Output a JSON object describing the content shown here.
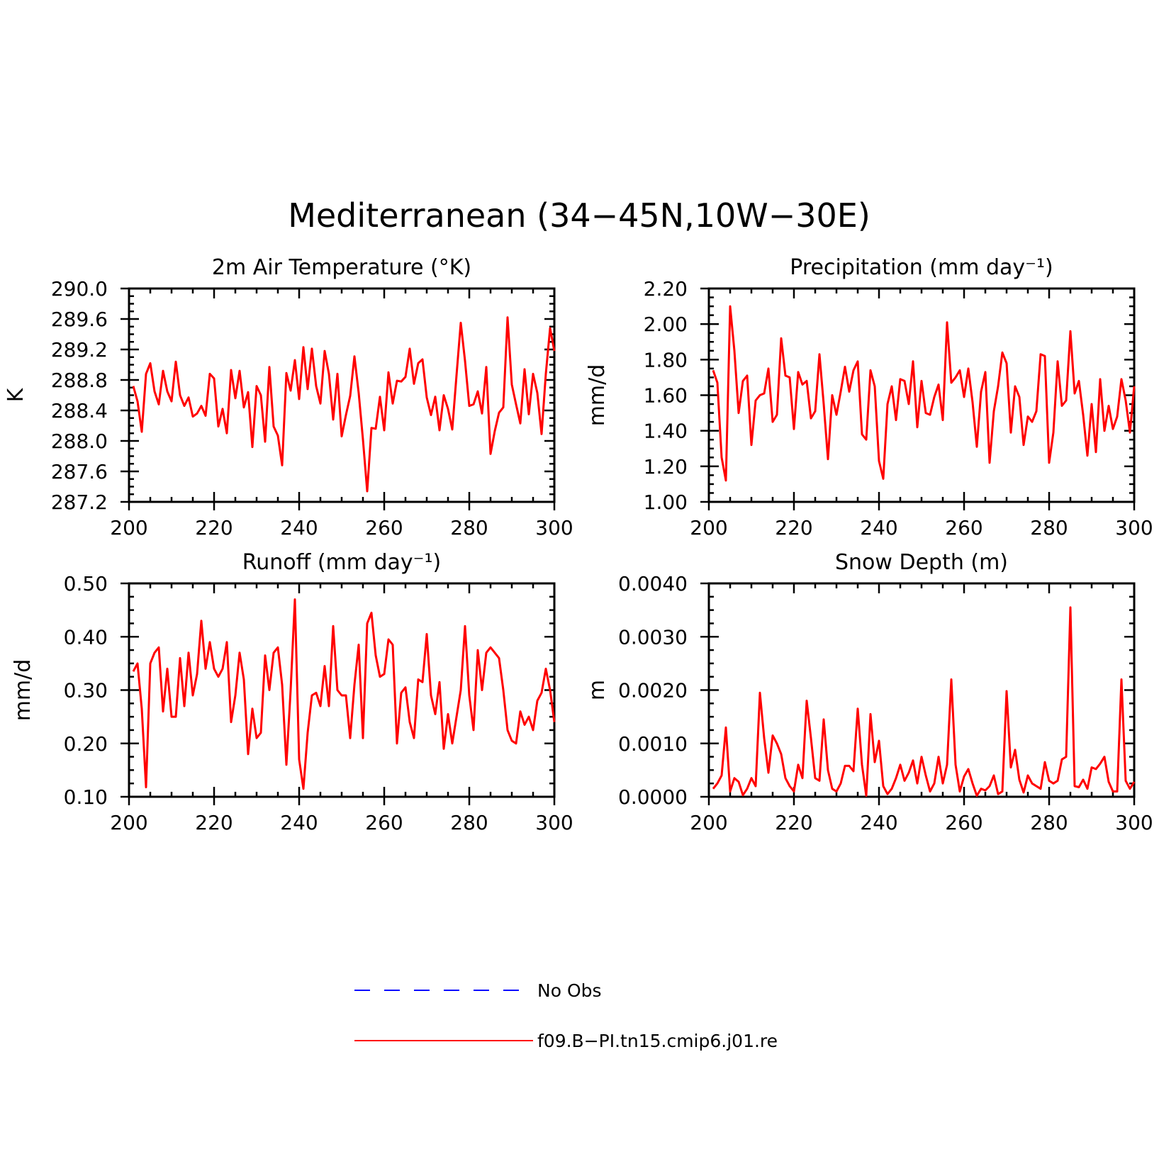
{
  "title": "Mediterranean (34−45N,10W−30E)",
  "legend": [
    {
      "label": "No Obs",
      "color": "#0000ff",
      "style": "dashed"
    },
    {
      "label": "f09.B−PI.tn15.cmip6.j01.re",
      "color": "#ff0000",
      "style": "solid"
    }
  ],
  "chart_data": [
    {
      "type": "line",
      "title": "2m Air Temperature (°K)",
      "xlabel": "",
      "ylabel": "K",
      "xlim": [
        200,
        300
      ],
      "ylim": [
        287.2,
        290.0
      ],
      "xticks": [
        "200",
        "220",
        "240",
        "260",
        "280",
        "300"
      ],
      "yticks": [
        "287.2",
        "287.6",
        "288.0",
        "288.4",
        "288.8",
        "289.2",
        "289.6",
        "290.0"
      ],
      "x": [
        201,
        202,
        203,
        204,
        205,
        206,
        207,
        208,
        209,
        210,
        211,
        212,
        213,
        214,
        215,
        216,
        217,
        218,
        219,
        220,
        221,
        222,
        223,
        224,
        225,
        226,
        227,
        228,
        229,
        230,
        231,
        232,
        233,
        234,
        235,
        236,
        237,
        238,
        239,
        240,
        241,
        242,
        243,
        244,
        245,
        246,
        247,
        248,
        249,
        250,
        251,
        252,
        253,
        254,
        255,
        256,
        257,
        258,
        259,
        260,
        261,
        262,
        263,
        264,
        265,
        266,
        267,
        268,
        269,
        270,
        271,
        272,
        273,
        274,
        275,
        276,
        277,
        278,
        279,
        280,
        281,
        282,
        283,
        284,
        285,
        286,
        287,
        288,
        289,
        290,
        291,
        292,
        293,
        294,
        295,
        296,
        297,
        298,
        299,
        300
      ],
      "series": [
        {
          "name": "f09.B−PI.tn15.cmip6.j01.re",
          "color": "#ff0000",
          "values": [
            288.72,
            288.52,
            288.12,
            288.88,
            289.02,
            288.65,
            288.48,
            288.92,
            288.65,
            288.52,
            289.04,
            288.6,
            288.46,
            288.57,
            288.32,
            288.36,
            288.46,
            288.33,
            288.88,
            288.82,
            288.19,
            288.42,
            288.1,
            288.93,
            288.56,
            288.92,
            288.44,
            288.64,
            287.92,
            288.72,
            288.6,
            287.99,
            288.97,
            288.19,
            288.07,
            287.68,
            288.89,
            288.66,
            289.06,
            288.55,
            289.23,
            288.68,
            289.21,
            288.72,
            288.49,
            289.18,
            288.88,
            288.28,
            288.88,
            288.06,
            288.34,
            288.59,
            289.11,
            288.63,
            288.02,
            287.34,
            288.17,
            288.16,
            288.58,
            288.14,
            288.9,
            288.49,
            288.79,
            288.78,
            288.84,
            289.21,
            288.75,
            289.02,
            289.07,
            288.57,
            288.34,
            288.58,
            288.14,
            288.6,
            288.42,
            288.15,
            288.86,
            289.55,
            289.05,
            288.46,
            288.48,
            288.65,
            288.36,
            288.97,
            287.83,
            288.13,
            288.37,
            288.44,
            289.62,
            288.74,
            288.48,
            288.23,
            288.94,
            288.35,
            288.88,
            288.63,
            288.09,
            288.88,
            289.48,
            289.18
          ]
        }
      ]
    },
    {
      "type": "line",
      "title": "Precipitation (mm day⁻¹)",
      "xlabel": "",
      "ylabel": "mm/d",
      "xlim": [
        200,
        300
      ],
      "ylim": [
        1.0,
        2.2
      ],
      "xticks": [
        "200",
        "220",
        "240",
        "260",
        "280",
        "300"
      ],
      "yticks": [
        "1.00",
        "1.20",
        "1.40",
        "1.60",
        "1.80",
        "2.00",
        "2.20"
      ],
      "x": [
        201,
        202,
        203,
        204,
        205,
        206,
        207,
        208,
        209,
        210,
        211,
        212,
        213,
        214,
        215,
        216,
        217,
        218,
        219,
        220,
        221,
        222,
        223,
        224,
        225,
        226,
        227,
        228,
        229,
        230,
        231,
        232,
        233,
        234,
        235,
        236,
        237,
        238,
        239,
        240,
        241,
        242,
        243,
        244,
        245,
        246,
        247,
        248,
        249,
        250,
        251,
        252,
        253,
        254,
        255,
        256,
        257,
        258,
        259,
        260,
        261,
        262,
        263,
        264,
        265,
        266,
        267,
        268,
        269,
        270,
        271,
        272,
        273,
        274,
        275,
        276,
        277,
        278,
        279,
        280,
        281,
        282,
        283,
        284,
        285,
        286,
        287,
        288,
        289,
        290,
        291,
        292,
        293,
        294,
        295,
        296,
        297,
        298,
        299,
        300
      ],
      "series": [
        {
          "name": "f09.B−PI.tn15.cmip6.j01.re",
          "color": "#ff0000",
          "values": [
            1.74,
            1.67,
            1.25,
            1.12,
            2.1,
            1.85,
            1.5,
            1.68,
            1.71,
            1.32,
            1.57,
            1.6,
            1.61,
            1.75,
            1.45,
            1.49,
            1.92,
            1.71,
            1.7,
            1.41,
            1.73,
            1.66,
            1.68,
            1.47,
            1.51,
            1.83,
            1.55,
            1.24,
            1.6,
            1.49,
            1.62,
            1.76,
            1.62,
            1.74,
            1.79,
            1.38,
            1.35,
            1.74,
            1.65,
            1.23,
            1.13,
            1.55,
            1.65,
            1.46,
            1.69,
            1.68,
            1.55,
            1.79,
            1.42,
            1.68,
            1.5,
            1.49,
            1.59,
            1.66,
            1.46,
            2.01,
            1.67,
            1.7,
            1.74,
            1.59,
            1.75,
            1.56,
            1.31,
            1.62,
            1.73,
            1.22,
            1.51,
            1.65,
            1.84,
            1.78,
            1.39,
            1.65,
            1.59,
            1.32,
            1.48,
            1.45,
            1.51,
            1.83,
            1.82,
            1.22,
            1.39,
            1.79,
            1.54,
            1.57,
            1.96,
            1.61,
            1.68,
            1.49,
            1.26,
            1.55,
            1.28,
            1.69,
            1.4,
            1.54,
            1.41,
            1.48,
            1.69,
            1.57,
            1.39,
            1.65
          ]
        }
      ]
    },
    {
      "type": "line",
      "title": "Runoff (mm day⁻¹)",
      "xlabel": "",
      "ylabel": "mm/d",
      "xlim": [
        200,
        300
      ],
      "ylim": [
        0.1,
        0.5
      ],
      "xticks": [
        "200",
        "220",
        "240",
        "260",
        "280",
        "300"
      ],
      "yticks": [
        "0.10",
        "0.20",
        "0.30",
        "0.40",
        "0.50"
      ],
      "x": [
        201,
        202,
        203,
        204,
        205,
        206,
        207,
        208,
        209,
        210,
        211,
        212,
        213,
        214,
        215,
        216,
        217,
        218,
        219,
        220,
        221,
        222,
        223,
        224,
        225,
        226,
        227,
        228,
        229,
        230,
        231,
        232,
        233,
        234,
        235,
        236,
        237,
        238,
        239,
        240,
        241,
        242,
        243,
        244,
        245,
        246,
        247,
        248,
        249,
        250,
        251,
        252,
        253,
        254,
        255,
        256,
        257,
        258,
        259,
        260,
        261,
        262,
        263,
        264,
        265,
        266,
        267,
        268,
        269,
        270,
        271,
        272,
        273,
        274,
        275,
        276,
        277,
        278,
        279,
        280,
        281,
        282,
        283,
        284,
        285,
        286,
        287,
        288,
        289,
        290,
        291,
        292,
        293,
        294,
        295,
        296,
        297,
        298,
        299,
        300
      ],
      "series": [
        {
          "name": "f09.B−PI.tn15.cmip6.j01.re",
          "color": "#ff0000",
          "values": [
            0.335,
            0.35,
            0.265,
            0.118,
            0.35,
            0.37,
            0.38,
            0.26,
            0.34,
            0.25,
            0.25,
            0.36,
            0.27,
            0.37,
            0.29,
            0.33,
            0.43,
            0.34,
            0.39,
            0.34,
            0.325,
            0.34,
            0.39,
            0.24,
            0.29,
            0.37,
            0.32,
            0.18,
            0.265,
            0.21,
            0.22,
            0.365,
            0.3,
            0.37,
            0.38,
            0.31,
            0.16,
            0.3,
            0.47,
            0.17,
            0.115,
            0.22,
            0.29,
            0.295,
            0.27,
            0.345,
            0.27,
            0.42,
            0.3,
            0.29,
            0.29,
            0.21,
            0.31,
            0.385,
            0.21,
            0.425,
            0.445,
            0.365,
            0.325,
            0.33,
            0.395,
            0.385,
            0.2,
            0.295,
            0.305,
            0.24,
            0.21,
            0.32,
            0.315,
            0.405,
            0.29,
            0.255,
            0.315,
            0.19,
            0.255,
            0.2,
            0.25,
            0.3,
            0.42,
            0.29,
            0.225,
            0.375,
            0.3,
            0.37,
            0.38,
            0.37,
            0.36,
            0.3,
            0.225,
            0.205,
            0.2,
            0.26,
            0.235,
            0.25,
            0.225,
            0.28,
            0.295,
            0.34,
            0.3,
            0.24
          ]
        }
      ]
    },
    {
      "type": "line",
      "title": "Snow Depth (m)",
      "xlabel": "",
      "ylabel": "m",
      "xlim": [
        200,
        300
      ],
      "ylim": [
        0.0,
        0.004
      ],
      "xticks": [
        "200",
        "220",
        "240",
        "260",
        "280",
        "300"
      ],
      "yticks": [
        "0.0000",
        "0.0010",
        "0.0020",
        "0.0030",
        "0.0040"
      ],
      "x": [
        201,
        202,
        203,
        204,
        205,
        206,
        207,
        208,
        209,
        210,
        211,
        212,
        213,
        214,
        215,
        216,
        217,
        218,
        219,
        220,
        221,
        222,
        223,
        224,
        225,
        226,
        227,
        228,
        229,
        230,
        231,
        232,
        233,
        234,
        235,
        236,
        237,
        238,
        239,
        240,
        241,
        242,
        243,
        244,
        245,
        246,
        247,
        248,
        249,
        250,
        251,
        252,
        253,
        254,
        255,
        256,
        257,
        258,
        259,
        260,
        261,
        262,
        263,
        264,
        265,
        266,
        267,
        268,
        269,
        270,
        271,
        272,
        273,
        274,
        275,
        276,
        277,
        278,
        279,
        280,
        281,
        282,
        283,
        284,
        285,
        286,
        287,
        288,
        289,
        290,
        291,
        292,
        293,
        294,
        295,
        296,
        297,
        298,
        299,
        300
      ],
      "series": [
        {
          "name": "f09.B−PI.tn15.cmip6.j01.re",
          "color": "#ff0000",
          "values": [
            0.00015,
            0.00025,
            0.0004,
            0.0013,
            0.0001,
            0.00035,
            0.00028,
            3e-05,
            0.00015,
            0.00035,
            0.0002,
            0.00195,
            0.0011,
            0.00045,
            0.00115,
            0.001,
            0.0008,
            0.00035,
            0.0002,
            0.0001,
            0.0006,
            0.00035,
            0.0018,
            0.0011,
            0.00035,
            0.0003,
            0.00145,
            0.0005,
            0.00015,
            0.0001,
            0.00025,
            0.00058,
            0.00058,
            0.00048,
            0.00165,
            0.0006,
            2e-05,
            0.00155,
            0.00065,
            0.00105,
            0.0002,
            5e-05,
            0.00015,
            0.00035,
            0.0006,
            0.0003,
            0.00045,
            0.00068,
            0.00025,
            0.00075,
            0.0004,
            0.0001,
            0.00025,
            0.00075,
            0.00025,
            0.0006,
            0.0022,
            0.0006,
            0.0001,
            0.00038,
            0.00052,
            0.00025,
            2e-05,
            0.00015,
            0.00012,
            0.0002,
            0.0004,
            5e-05,
            0.0001,
            0.00198,
            0.00055,
            0.00088,
            0.00032,
            8e-05,
            0.0004,
            0.00025,
            0.0002,
            0.00015,
            0.00065,
            0.0003,
            0.00025,
            0.0003,
            0.0007,
            0.00075,
            0.00355,
            0.0002,
            0.00018,
            0.00032,
            0.00015,
            0.00055,
            0.00052,
            0.00062,
            0.00075,
            0.00028,
            0.0001,
            0.0001,
            0.0022,
            0.0003,
            0.00015,
            0.00028
          ]
        }
      ]
    }
  ]
}
